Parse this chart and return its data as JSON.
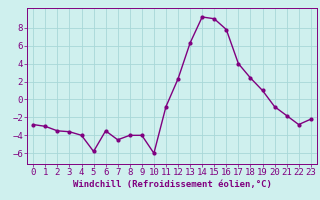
{
  "x": [
    0,
    1,
    2,
    3,
    4,
    5,
    6,
    7,
    8,
    9,
    10,
    11,
    12,
    13,
    14,
    15,
    16,
    17,
    18,
    19,
    20,
    21,
    22,
    23
  ],
  "y": [
    -2.8,
    -3.0,
    -3.5,
    -3.6,
    -4.0,
    -5.8,
    -3.5,
    -4.5,
    -4.0,
    -4.0,
    -6.0,
    -0.8,
    2.3,
    6.3,
    9.2,
    9.0,
    7.8,
    4.0,
    2.4,
    1.0,
    -0.8,
    -1.8,
    -2.8,
    -2.2
  ],
  "line_color": "#800080",
  "marker": "o",
  "marker_size": 2.0,
  "bg_color": "#cff0ee",
  "grid_color": "#a8d8d8",
  "axis_color": "#800080",
  "tick_color": "#800080",
  "xlabel": "Windchill (Refroidissement éolien,°C)",
  "xlim": [
    -0.5,
    23.5
  ],
  "ylim": [
    -7.2,
    10.2
  ],
  "yticks": [
    -6,
    -4,
    -2,
    0,
    2,
    4,
    6,
    8
  ],
  "xticks": [
    0,
    1,
    2,
    3,
    4,
    5,
    6,
    7,
    8,
    9,
    10,
    11,
    12,
    13,
    14,
    15,
    16,
    17,
    18,
    19,
    20,
    21,
    22,
    23
  ],
  "label_fontsize": 6.5,
  "tick_fontsize": 6.5,
  "line_width": 1.0
}
